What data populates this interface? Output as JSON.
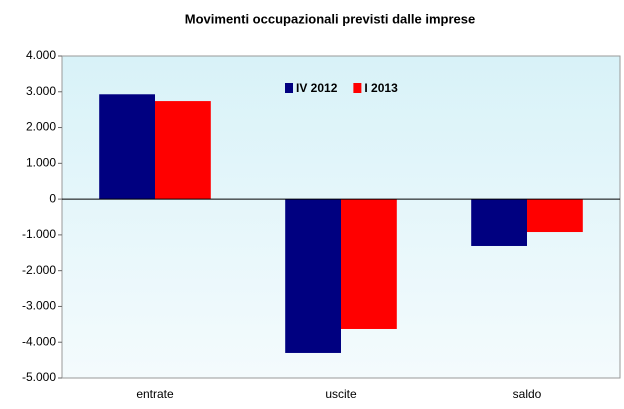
{
  "chart_data": {
    "type": "bar",
    "title": "Movimenti occupazionali previsti dalle imprese",
    "categories": [
      "entrate",
      "uscite",
      "saldo"
    ],
    "series": [
      {
        "name": "IV 2012",
        "color": "#000080",
        "values": [
          2930,
          -4300,
          -1310
        ]
      },
      {
        "name": "I 2013",
        "color": "#ff0000",
        "values": [
          2740,
          -3630,
          -920
        ]
      }
    ],
    "ylim": [
      -5000,
      4000
    ],
    "yticks": [
      {
        "value": -5000,
        "label": "-5.000"
      },
      {
        "value": -4000,
        "label": "-4.000"
      },
      {
        "value": -3000,
        "label": "-3.000"
      },
      {
        "value": -2000,
        "label": "-2.000"
      },
      {
        "value": -1000,
        "label": "-1.000"
      },
      0,
      {
        "value": 1000,
        "label": "1.000"
      },
      {
        "value": 2000,
        "label": "2.000"
      },
      {
        "value": 3000,
        "label": "3.000"
      },
      {
        "value": 4000,
        "label": "4.000"
      }
    ],
    "legend": "top"
  }
}
